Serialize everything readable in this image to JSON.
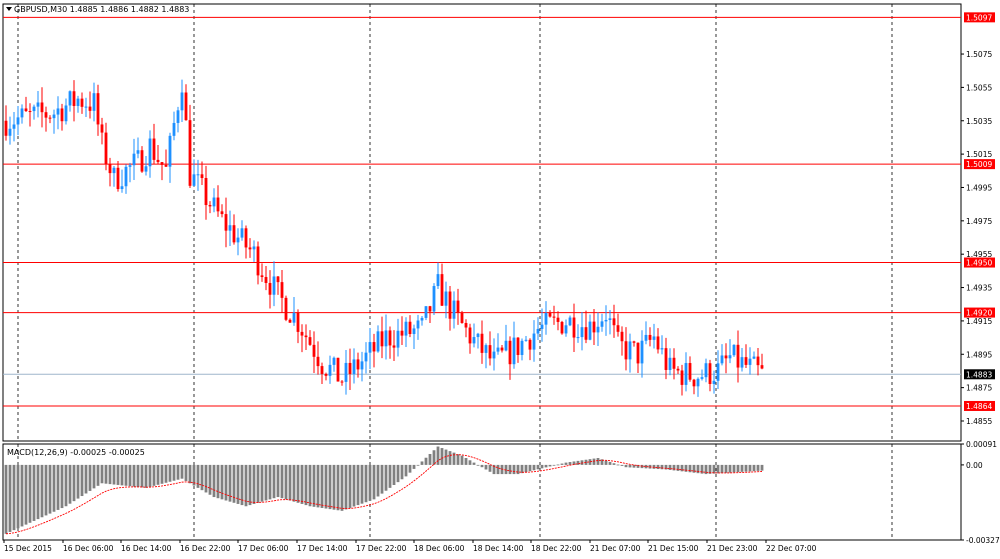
{
  "chart_data": {
    "type": "candlestick",
    "symbol_header": "GBPUSD,M30 1.4885 1.4886 1.4882 1.4883",
    "colors": {
      "bull": "#1e90ff",
      "bear": "#ff0000",
      "level_line": "#ff0000",
      "current_line": "#9fb5cc",
      "macd_hist": "#808080",
      "macd_signal": "#ff0000",
      "grid": "#000000"
    },
    "price_axis": {
      "ylim": [
        1.4843,
        1.5105
      ],
      "ticks": [
        "1.5075",
        "1.5055",
        "1.5035",
        "1.5015",
        "1.4995",
        "1.4975",
        "1.4955",
        "1.4935",
        "1.4915",
        "1.4895",
        "1.4875",
        "1.4855"
      ]
    },
    "levels": [
      {
        "price": 1.5097,
        "label": "1.5097"
      },
      {
        "price": 1.5009,
        "label": "1.5009"
      },
      {
        "price": 1.495,
        "label": "1.4950"
      },
      {
        "price": 1.492,
        "label": "1.4920"
      },
      {
        "price": 1.4864,
        "label": "1.4864"
      }
    ],
    "current_price": {
      "price": 1.4883,
      "label": "1.4883"
    },
    "time_labels": [
      "15 Dec 2015",
      "16 Dec 06:00",
      "16 Dec 14:00",
      "16 Dec 22:00",
      "17 Dec 06:00",
      "17 Dec 14:00",
      "17 Dec 22:00",
      "18 Dec 06:00",
      "18 Dec 14:00",
      "18 Dec 22:00",
      "21 Dec 07:00",
      "21 Dec 15:00",
      "21 Dec 23:00",
      "22 Dec 07:00"
    ],
    "candle_count": 190,
    "key_closes": [
      [
        0,
        1.5035
      ],
      [
        12,
        1.504
      ],
      [
        18,
        1.5048
      ],
      [
        22,
        1.5045
      ],
      [
        24,
        1.502
      ],
      [
        27,
        1.5
      ],
      [
        33,
        1.501
      ],
      [
        36,
        1.502
      ],
      [
        40,
        1.5005
      ],
      [
        44,
        1.506
      ],
      [
        46,
        1.5003
      ],
      [
        54,
        1.4975
      ],
      [
        62,
        1.4955
      ],
      [
        68,
        1.493
      ],
      [
        73,
        1.4915
      ],
      [
        79,
        1.489
      ],
      [
        84,
        1.488
      ],
      [
        90,
        1.4893
      ],
      [
        95,
        1.4905
      ],
      [
        104,
        1.491
      ],
      [
        108,
        1.4935
      ],
      [
        113,
        1.4915
      ],
      [
        118,
        1.49
      ],
      [
        122,
        1.489
      ],
      [
        128,
        1.49
      ],
      [
        133,
        1.491
      ],
      [
        140,
        1.4915
      ],
      [
        146,
        1.4912
      ],
      [
        150,
        1.492
      ],
      [
        153,
        1.49
      ],
      [
        158,
        1.4895
      ],
      [
        162,
        1.4905
      ],
      [
        166,
        1.4885
      ],
      [
        172,
        1.4882
      ],
      [
        178,
        1.4885
      ],
      [
        181,
        1.4893
      ],
      [
        185,
        1.4888
      ],
      [
        189,
        1.4883
      ]
    ],
    "macd": {
      "label": "MACD(12,26,9) -0.00025 -0.00025",
      "ylim": [
        -0.00327,
        0.00091
      ],
      "ticks": [
        "0.00091",
        "0.00",
        "-0.00327"
      ],
      "key_values": [
        [
          0,
          -0.003
        ],
        [
          15,
          -0.0018
        ],
        [
          24,
          -0.0008
        ],
        [
          35,
          -0.001
        ],
        [
          44,
          -0.0006
        ],
        [
          52,
          -0.0014
        ],
        [
          60,
          -0.0018
        ],
        [
          68,
          -0.0014
        ],
        [
          76,
          -0.0018
        ],
        [
          84,
          -0.002
        ],
        [
          92,
          -0.0015
        ],
        [
          100,
          -0.0005
        ],
        [
          108,
          0.0008
        ],
        [
          114,
          0.0004
        ],
        [
          122,
          -0.0004
        ],
        [
          128,
          -0.0004
        ],
        [
          140,
          0.0001
        ],
        [
          148,
          0.0003
        ],
        [
          155,
          -0.0001
        ],
        [
          165,
          -0.0002
        ],
        [
          175,
          -0.0004
        ],
        [
          189,
          -0.00025
        ]
      ]
    }
  }
}
